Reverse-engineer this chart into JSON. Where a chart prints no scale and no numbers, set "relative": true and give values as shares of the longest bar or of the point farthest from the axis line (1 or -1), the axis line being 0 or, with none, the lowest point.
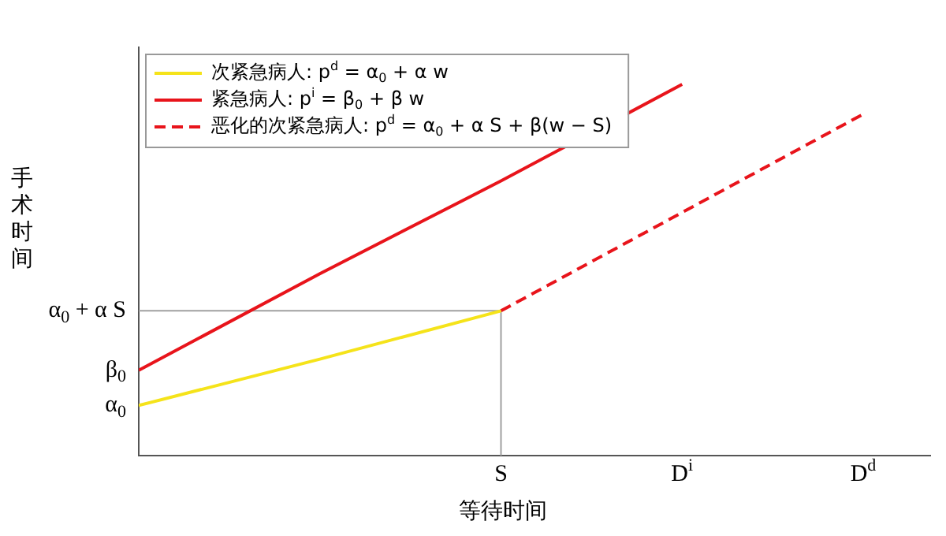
{
  "chart_data": {
    "type": "line",
    "xlabel": "等待时间",
    "ylabel": "手术时间",
    "relative": true,
    "categories": [
      null,
      null,
      "S",
      "D$^{i}$",
      "D$^{d}$"
    ],
    "grid": false,
    "legend": "top left",
    "marker": "none",
    "annotations": [
      "α$_{0}$",
      "β$_{0}$",
      "α$_{0}$ + α S"
    ],
    "ref_lines": [
      {
        "axis": "x",
        "value": "S",
        "color": "#a0a0a0"
      }
    ],
    "series": [
      {
        "name": "次紧急病人: p$^{d}$ = α$_{0}$ + α w",
        "color": "#f5e31a",
        "values": [
          0.135,
          0.26,
          0.39,
          null,
          null
        ],
        "line_style": "solid"
      },
      {
        "name": "紧急病人: p$^{i}$ = β$_{0}$ + β w",
        "color": "#e8141b",
        "values": [
          0.23,
          0.49,
          0.74,
          1,
          null
        ],
        "line_style": "solid"
      },
      {
        "name": "恶化的次紧急病人: p$^{d}$ = α$_{0}$ + α S + β(w − S)",
        "color": "#e8141b",
        "values": [
          null,
          null,
          0.39,
          0.655,
          0.92
        ],
        "line_style": "dashed"
      },
      {
        "color": "#a0a0a0",
        "values": [
          0.39,
          0.39,
          0.39,
          null,
          null
        ],
        "line_style": "solid"
      }
    ]
  }
}
